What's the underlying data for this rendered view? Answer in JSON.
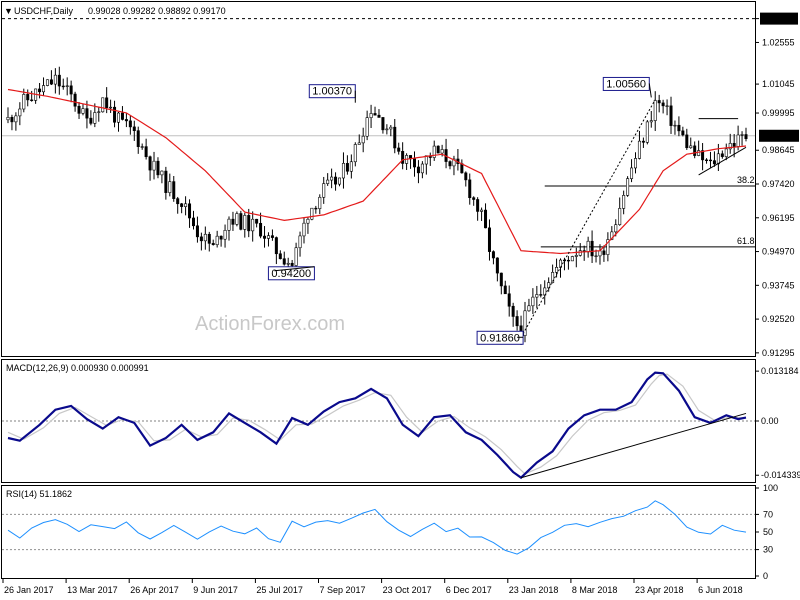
{
  "chart_data": [
    {
      "type": "candlestick",
      "title": "USDCHF,Daily",
      "ohlc_header": "0.99028 0.99282 0.98892 0.99170",
      "current_price": "0.99170",
      "current_value": 0.9917,
      "watermark": "ActionForex.com",
      "ylim": [
        0.9129,
        1.0395
      ],
      "y_ticks": [
        {
          "label": "1.03420",
          "value": 1.0342,
          "box": true
        },
        {
          "label": "1.02555",
          "value": 1.02555
        },
        {
          "label": "1.01045",
          "value": 1.01045
        },
        {
          "label": "0.99995",
          "value": 0.99995
        },
        {
          "label": "0.98645",
          "value": 0.98645
        },
        {
          "label": "0.97420",
          "value": 0.9742
        },
        {
          "label": "0.96195",
          "value": 0.96195
        },
        {
          "label": "0.94970",
          "value": 0.9497
        },
        {
          "label": "0.93745",
          "value": 0.93745
        },
        {
          "label": "0.92520",
          "value": 0.9252
        },
        {
          "label": "0.91295",
          "value": 0.91295
        }
      ],
      "x_ticks": [
        "26 Jan 2017",
        "13 Mar 2017",
        "26 Apr 2017",
        "9 Jun 2017",
        "25 Jul 2017",
        "7 Sep 2017",
        "23 Oct 2017",
        "6 Dec 2017",
        "23 Jan 2018",
        "8 Mar 2018",
        "23 Apr 2018",
        "6 Jun 2018"
      ],
      "closes": [
        [
          0,
          0.9975
        ],
        [
          4,
          1.004
        ],
        [
          8,
          1.008
        ],
        [
          12,
          1.012
        ],
        [
          16,
          1.006
        ],
        [
          20,
          0.997
        ],
        [
          24,
          1.005
        ],
        [
          28,
          0.997
        ],
        [
          32,
          0.993
        ],
        [
          36,
          0.982
        ],
        [
          40,
          0.974
        ],
        [
          44,
          0.968
        ],
        [
          48,
          0.957
        ],
        [
          52,
          0.951
        ],
        [
          56,
          0.962
        ],
        [
          60,
          0.96
        ],
        [
          64,
          0.958
        ],
        [
          68,
          0.95
        ],
        [
          72,
          0.945
        ],
        [
          76,
          0.964
        ],
        [
          80,
          0.972
        ],
        [
          84,
          0.976
        ],
        [
          88,
          0.987
        ],
        [
          92,
          1.002
        ],
        [
          96,
          0.995
        ],
        [
          100,
          0.984
        ],
        [
          104,
          0.981
        ],
        [
          108,
          0.986
        ],
        [
          112,
          0.983
        ],
        [
          116,
          0.975
        ],
        [
          120,
          0.962
        ],
        [
          124,
          0.94
        ],
        [
          128,
          0.924
        ],
        [
          130,
          0.922
        ],
        [
          134,
          0.935
        ],
        [
          138,
          0.942
        ],
        [
          142,
          0.948
        ],
        [
          146,
          0.952
        ],
        [
          150,
          0.948
        ],
        [
          154,
          0.962
        ],
        [
          158,
          0.98
        ],
        [
          162,
          0.995
        ],
        [
          164,
          1.004
        ],
        [
          166,
          1.002
        ],
        [
          170,
          0.993
        ],
        [
          174,
          0.985
        ],
        [
          178,
          0.981
        ],
        [
          182,
          0.988
        ],
        [
          185,
          0.99
        ],
        [
          187,
          0.9917
        ]
      ],
      "moving_average": [
        [
          0,
          1.0085
        ],
        [
          10,
          1.006
        ],
        [
          20,
          1.003
        ],
        [
          30,
          1.0
        ],
        [
          40,
          0.991
        ],
        [
          50,
          0.979
        ],
        [
          60,
          0.964
        ],
        [
          70,
          0.961
        ],
        [
          80,
          0.963
        ],
        [
          90,
          0.968
        ],
        [
          100,
          0.983
        ],
        [
          110,
          0.985
        ],
        [
          120,
          0.978
        ],
        [
          130,
          0.95
        ],
        [
          140,
          0.949
        ],
        [
          150,
          0.95
        ],
        [
          160,
          0.965
        ],
        [
          166,
          0.979
        ],
        [
          172,
          0.985
        ],
        [
          180,
          0.987
        ],
        [
          187,
          0.988
        ]
      ],
      "annotations": [
        {
          "label": "1.00370",
          "value": 1.0037
        },
        {
          "label": "0.94200",
          "value": 0.942
        },
        {
          "label": "0.91860",
          "value": 0.9186
        },
        {
          "label": "1.00560",
          "value": 1.0056
        }
      ],
      "fib_levels": [
        {
          "label": "38.2",
          "value": 0.9735
        },
        {
          "label": "61.8",
          "value": 0.9514
        }
      ]
    },
    {
      "type": "line",
      "title": "MACD(12,26,9) 0.000930 0.000991",
      "ylim": [
        -0.0156,
        0.0156
      ],
      "y_ticks": [
        {
          "label": "0.013184",
          "value": 0.013184
        },
        {
          "label": "0.00",
          "value": 0.0
        },
        {
          "label": "-0.014339",
          "value": -0.014339
        }
      ],
      "series": [
        {
          "color": "#0a0a8c",
          "values": [
            [
              0,
              -0.0045
            ],
            [
              3,
              -0.0052
            ],
            [
              8,
              -0.001
            ],
            [
              12,
              0.003
            ],
            [
              16,
              0.004
            ],
            [
              20,
              0.0005
            ],
            [
              24,
              -0.002
            ],
            [
              28,
              0.001
            ],
            [
              32,
              -0.0005
            ],
            [
              36,
              -0.0065
            ],
            [
              40,
              -0.0045
            ],
            [
              44,
              -0.001
            ],
            [
              48,
              -0.005
            ],
            [
              52,
              -0.003
            ],
            [
              56,
              0.002
            ],
            [
              60,
              -0.0005
            ],
            [
              64,
              -0.003
            ],
            [
              68,
              -0.006
            ],
            [
              72,
              0.0008
            ],
            [
              76,
              -0.001
            ],
            [
              80,
              0.0025
            ],
            [
              84,
              0.005
            ],
            [
              88,
              0.006
            ],
            [
              92,
              0.0085
            ],
            [
              96,
              0.006
            ],
            [
              100,
              -0.001
            ],
            [
              104,
              -0.004
            ],
            [
              108,
              0.001
            ],
            [
              112,
              0.0015
            ],
            [
              116,
              -0.003
            ],
            [
              120,
              -0.005
            ],
            [
              124,
              -0.009
            ],
            [
              128,
              -0.0135
            ],
            [
              130,
              -0.015
            ],
            [
              134,
              -0.011
            ],
            [
              138,
              -0.008
            ],
            [
              142,
              -0.002
            ],
            [
              146,
              0.0015
            ],
            [
              150,
              0.003
            ],
            [
              154,
              0.003
            ],
            [
              158,
              0.005
            ],
            [
              162,
              0.011
            ],
            [
              164,
              0.0128
            ],
            [
              166,
              0.0126
            ],
            [
              170,
              0.008
            ],
            [
              174,
              0.001
            ],
            [
              178,
              -0.0005
            ],
            [
              182,
              0.0015
            ],
            [
              185,
              0.0005
            ],
            [
              187,
              0.0009
            ]
          ]
        },
        {
          "color": "#c8c8c8",
          "values": [
            [
              0,
              -0.003
            ],
            [
              4,
              -0.0048
            ],
            [
              9,
              -0.0018
            ],
            [
              13,
              0.002
            ],
            [
              17,
              0.0036
            ],
            [
              21,
              0.0012
            ],
            [
              25,
              -0.0012
            ],
            [
              29,
              0.0004
            ],
            [
              33,
              -0.0002
            ],
            [
              37,
              -0.0052
            ],
            [
              41,
              -0.005
            ],
            [
              45,
              -0.0022
            ],
            [
              49,
              -0.0042
            ],
            [
              53,
              -0.0036
            ],
            [
              57,
              0.0008
            ],
            [
              61,
              0.0002
            ],
            [
              65,
              -0.0022
            ],
            [
              69,
              -0.005
            ],
            [
              73,
              -0.001
            ],
            [
              77,
              -0.0008
            ],
            [
              81,
              0.0015
            ],
            [
              85,
              0.004
            ],
            [
              89,
              0.0055
            ],
            [
              93,
              0.0075
            ],
            [
              97,
              0.0068
            ],
            [
              101,
              0.001
            ],
            [
              105,
              -0.003
            ],
            [
              109,
              0.0
            ],
            [
              113,
              0.0012
            ],
            [
              117,
              -0.0018
            ],
            [
              121,
              -0.0042
            ],
            [
              125,
              -0.0076
            ],
            [
              129,
              -0.012
            ],
            [
              131,
              -0.014
            ],
            [
              135,
              -0.0122
            ],
            [
              139,
              -0.0092
            ],
            [
              143,
              -0.004
            ],
            [
              147,
              0.0002
            ],
            [
              151,
              0.0022
            ],
            [
              155,
              0.0028
            ],
            [
              159,
              0.0042
            ],
            [
              163,
              0.0098
            ],
            [
              165,
              0.012
            ],
            [
              167,
              0.0124
            ],
            [
              171,
              0.0092
            ],
            [
              175,
              0.0028
            ],
            [
              179,
              0.0002
            ],
            [
              183,
              0.001
            ],
            [
              186,
              0.0008
            ],
            [
              187,
              0.00099
            ]
          ]
        }
      ]
    },
    {
      "type": "line",
      "title": "RSI(14) 51.1862",
      "ylim": [
        0,
        100
      ],
      "y_ticks": [
        {
          "label": "100",
          "value": 100
        },
        {
          "label": "70",
          "value": 70
        },
        {
          "label": "50",
          "value": 50
        },
        {
          "label": "30",
          "value": 30
        },
        {
          "label": "0",
          "value": 0
        }
      ],
      "series": [
        {
          "color": "#1e90ff",
          "values": [
            [
              0,
              52
            ],
            [
              3,
              45
            ],
            [
              6,
              56
            ],
            [
              9,
              60
            ],
            [
              12,
              62
            ],
            [
              15,
              58
            ],
            [
              18,
              52
            ],
            [
              21,
              60
            ],
            [
              24,
              56
            ],
            [
              27,
              52
            ],
            [
              30,
              60
            ],
            [
              33,
              50
            ],
            [
              36,
              44
            ],
            [
              39,
              50
            ],
            [
              42,
              56
            ],
            [
              45,
              48
            ],
            [
              48,
              42
            ],
            [
              51,
              52
            ],
            [
              54,
              58
            ],
            [
              57,
              50
            ],
            [
              60,
              46
            ],
            [
              63,
              54
            ],
            [
              66,
              44
            ],
            [
              69,
              40
            ],
            [
              72,
              62
            ],
            [
              75,
              54
            ],
            [
              78,
              60
            ],
            [
              81,
              64
            ],
            [
              84,
              62
            ],
            [
              87,
              66
            ],
            [
              90,
              70
            ],
            [
              93,
              74
            ],
            [
              96,
              62
            ],
            [
              99,
              54
            ],
            [
              102,
              46
            ],
            [
              105,
              52
            ],
            [
              108,
              58
            ],
            [
              111,
              50
            ],
            [
              114,
              56
            ],
            [
              117,
              46
            ],
            [
              120,
              44
            ],
            [
              123,
              36
            ],
            [
              126,
              28
            ],
            [
              129,
              26
            ],
            [
              132,
              34
            ],
            [
              135,
              44
            ],
            [
              138,
              48
            ],
            [
              141,
              56
            ],
            [
              144,
              60
            ],
            [
              147,
              58
            ],
            [
              150,
              62
            ],
            [
              153,
              64
            ],
            [
              156,
              66
            ],
            [
              159,
              74
            ],
            [
              162,
              80
            ],
            [
              164,
              84
            ],
            [
              166,
              82
            ],
            [
              169,
              72
            ],
            [
              172,
              56
            ],
            [
              175,
              48
            ],
            [
              178,
              46
            ],
            [
              181,
              58
            ],
            [
              184,
              54
            ],
            [
              187,
              51
            ]
          ]
        }
      ]
    }
  ]
}
